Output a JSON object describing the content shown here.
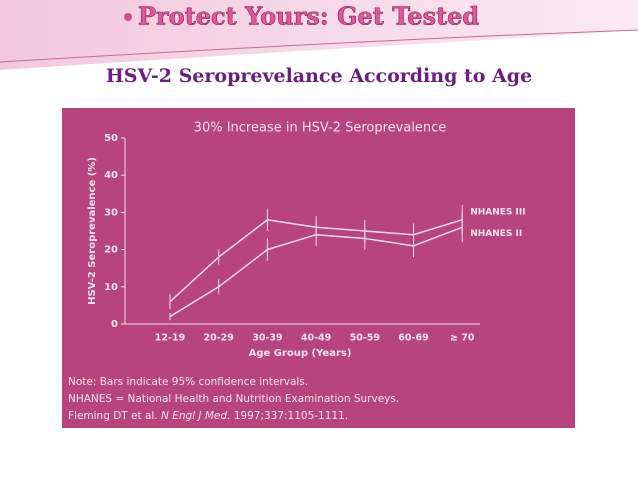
{
  "slide_title": "Protect Yours: Get Tested",
  "heading": "HSV-2 Seroprevelance According to Age",
  "chart_data": {
    "type": "line",
    "title": "30% Increase in HSV-2 Seroprevalence",
    "y_label": "HSV-2 Seroprevalence (%)",
    "x_label": "Age Group (Years)",
    "categories": [
      "12-19",
      "20-29",
      "30-39",
      "40-49",
      "50-59",
      "60-69",
      "≥ 70"
    ],
    "ylim": [
      0,
      50
    ],
    "yticks": [
      0,
      10,
      20,
      30,
      40,
      50
    ],
    "series": [
      {
        "name": "NHANES III",
        "color": "#f3dbe6",
        "values": [
          6,
          18,
          28,
          26,
          25,
          24,
          28
        ],
        "errors": [
          2,
          2,
          3,
          3,
          3,
          3,
          4
        ]
      },
      {
        "name": "NHANES II",
        "color": "#f3dbe6",
        "values": [
          2,
          10,
          20,
          24,
          23,
          21,
          26
        ],
        "errors": [
          1,
          2,
          3,
          3,
          3,
          3,
          4
        ]
      }
    ]
  },
  "notes": [
    "Note: Bars indicate 95% confidence intervals.",
    "NHANES = National Health and Nutrition Examination Surveys."
  ],
  "citation": [
    "Fleming DT et al. ",
    "N Engl J Med",
    ". 1997;337:1105-1111."
  ]
}
